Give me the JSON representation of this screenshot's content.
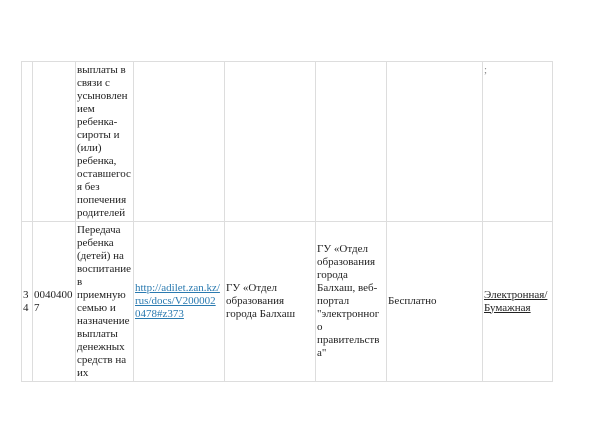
{
  "rows": [
    {
      "num": "",
      "code": "",
      "name": "выплаты в\nсвязи с\nусыновлен\nием\nребенка-\nсироты и\n(или)\nребенка,\nоставшегос\nя без\nпопечения\nродителей",
      "link": "",
      "provider": "",
      "service_point": "",
      "cost": "",
      "form": ";"
    },
    {
      "num": "3\n4",
      "code": "0040400\n7",
      "name": "Передача\nребенка\n(детей) на\nвоспитание\nв\nприемную\nсемью и\nназначение\nвыплаты\nденежных\nсредств на\nих",
      "link": "http://adilet.zan.kz/\nrus/docs/V200002\n0478#z373",
      "provider": "ГУ «Отдел\nобразования\nгорода Балхаш",
      "service_point": "ГУ «Отдел\nобразования\nгорода\nБалхаш, веб-\nпортал\n\"электронног\nо\nправительств\nа\"",
      "cost": "Бесплатно",
      "form": "Электронная/\nБумажная"
    }
  ]
}
